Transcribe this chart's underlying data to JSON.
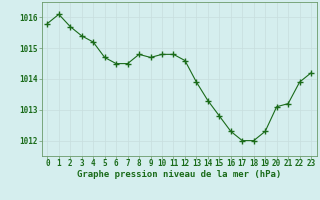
{
  "x": [
    0,
    1,
    2,
    3,
    4,
    5,
    6,
    7,
    8,
    9,
    10,
    11,
    12,
    13,
    14,
    15,
    16,
    17,
    18,
    19,
    20,
    21,
    22,
    23
  ],
  "y": [
    1015.8,
    1016.1,
    1015.7,
    1015.4,
    1015.2,
    1014.7,
    1014.5,
    1014.5,
    1014.8,
    1014.7,
    1014.8,
    1014.8,
    1014.6,
    1013.9,
    1013.3,
    1012.8,
    1012.3,
    1012.0,
    1012.0,
    1012.3,
    1013.1,
    1013.2,
    1013.9,
    1014.2
  ],
  "line_color": "#1a6b1a",
  "marker_color": "#1a6b1a",
  "background_color": "#d5eeee",
  "grid_color": "#c8dede",
  "xlabel": "Graphe pression niveau de la mer (hPa)",
  "xlabel_color": "#1a6b1a",
  "tick_color": "#1a6b1a",
  "axis_color": "#6a9a6a",
  "ylim_min": 1011.5,
  "ylim_max": 1016.5,
  "yticks": [
    1012,
    1013,
    1014,
    1015,
    1016
  ],
  "xticks": [
    0,
    1,
    2,
    3,
    4,
    5,
    6,
    7,
    8,
    9,
    10,
    11,
    12,
    13,
    14,
    15,
    16,
    17,
    18,
    19,
    20,
    21,
    22,
    23
  ],
  "marker_size": 4,
  "tick_fontsize": 5.5,
  "xlabel_fontsize": 6.5
}
